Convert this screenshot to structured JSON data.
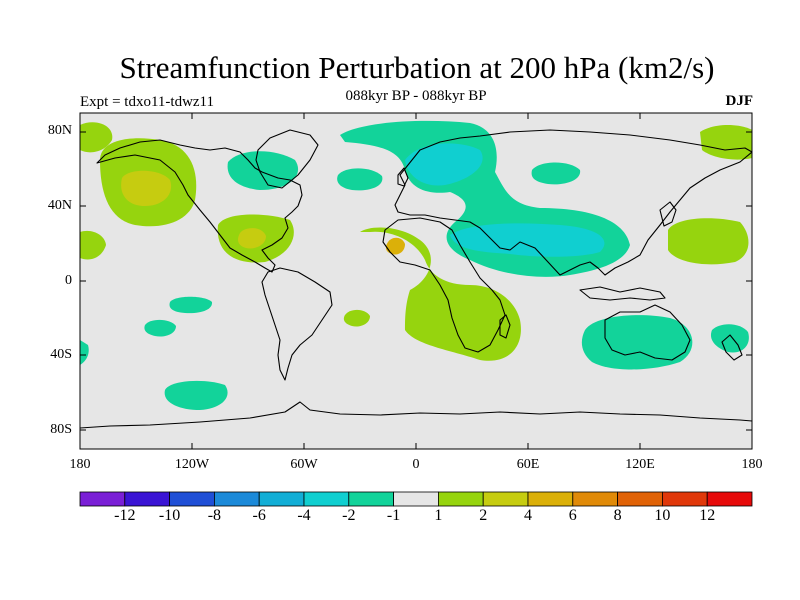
{
  "title": "Streamfunction Perturbation at 200 hPa (km2/s)",
  "left_subtitle": "Expt = tdxo11-tdwz11",
  "center_subtitle": "088kyr BP - 088kyr BP",
  "right_subtitle": "DJF",
  "lat_labels": [
    "80N",
    "40N",
    "0",
    "40S",
    "80S"
  ],
  "lon_labels": [
    "180",
    "120W",
    "60W",
    "0",
    "60E",
    "120E",
    "180"
  ],
  "colorbar": {
    "colors": [
      "#7a1fd6",
      "#3a14d4",
      "#1f4fd6",
      "#1c8ad9",
      "#12aed6",
      "#10cfd0",
      "#12d39a",
      "#e6e6e6",
      "#96d40e",
      "#c6cc10",
      "#dbb009",
      "#e08a08",
      "#e06206",
      "#e0380a",
      "#e60a0a"
    ],
    "labels": [
      "-12",
      "-10",
      "-8",
      "-6",
      "-4",
      "-2",
      "-1",
      "1",
      "2",
      "4",
      "6",
      "8",
      "10",
      "12"
    ]
  },
  "colors": {
    "background_field": "#e6e6e6",
    "negative_light": "#12d39a",
    "negative_mid": "#10cfd0",
    "positive_light": "#96d40e",
    "positive_mid": "#c6cc10",
    "positive_strong": "#dbb009"
  }
}
